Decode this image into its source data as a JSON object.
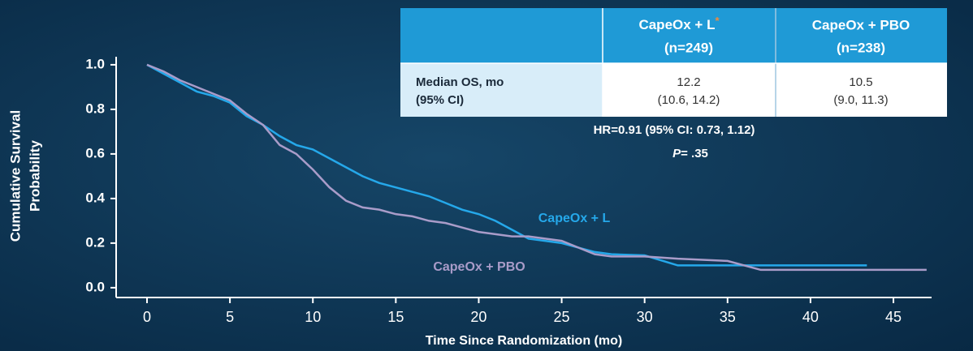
{
  "chart_data": {
    "type": "line",
    "y_label": [
      "Cumulative Survival",
      "Probability"
    ],
    "x_label": "Time Since Randomization (mo)",
    "x": [
      0,
      1,
      2,
      3,
      4,
      5,
      6,
      7,
      8,
      9,
      10,
      11,
      12,
      13,
      14,
      15,
      16,
      17,
      18,
      19,
      20,
      21,
      22,
      23,
      24,
      25,
      26,
      27,
      28,
      30,
      32,
      35,
      37,
      40,
      43.4,
      47
    ],
    "series": [
      {
        "name": "CapeOx + L",
        "color": "#25a8ea",
        "values": [
          1.0,
          0.96,
          0.92,
          0.88,
          0.86,
          0.83,
          0.77,
          0.73,
          0.68,
          0.64,
          0.62,
          0.58,
          0.54,
          0.5,
          0.47,
          0.45,
          0.43,
          0.41,
          0.38,
          0.35,
          0.33,
          0.3,
          0.26,
          0.22,
          0.21,
          0.2,
          0.18,
          0.16,
          0.15,
          0.145,
          0.1,
          0.1,
          0.1,
          0.1,
          0.1,
          null
        ]
      },
      {
        "name": "CapeOx + PBO",
        "color": "#a99cc9",
        "values": [
          1.0,
          0.97,
          0.93,
          0.9,
          0.87,
          0.84,
          0.78,
          0.73,
          0.64,
          0.6,
          0.53,
          0.45,
          0.39,
          0.36,
          0.35,
          0.33,
          0.32,
          0.3,
          0.29,
          0.27,
          0.25,
          0.24,
          0.23,
          0.23,
          0.22,
          0.21,
          0.18,
          0.15,
          0.14,
          0.14,
          0.13,
          0.12,
          0.08,
          0.08,
          0.08,
          0.08
        ]
      }
    ],
    "xlim": [
      -1.86,
      47.3
    ],
    "ylim": [
      -0.044,
      1.036
    ],
    "xticks": [
      0,
      5,
      10,
      15,
      20,
      25,
      30,
      35,
      40,
      45
    ],
    "yticks": [
      {
        "value": 0,
        "label": "0.0"
      },
      {
        "value": 0.2,
        "label": "0.2"
      },
      {
        "value": 0.4,
        "label": "0.4"
      },
      {
        "value": 0.6,
        "label": "0.6"
      },
      {
        "value": 0.8,
        "label": "0.8"
      },
      {
        "value": 1,
        "label": "1.0"
      }
    ]
  },
  "table": {
    "columns": [
      {
        "name": "CapeOx + L",
        "mark": "*",
        "n": "(n=249)"
      },
      {
        "name": "CapeOx + PBO",
        "n": "(n=238)"
      }
    ],
    "row": {
      "label": [
        "Median OS, mo",
        "(95% CI)"
      ],
      "cells": [
        [
          "12.2",
          "(10.6, 14.2)"
        ],
        [
          "10.5",
          "(9.0, 11.3)"
        ]
      ]
    },
    "hr": "HR=0.91 (95% CI: 0.73, 1.12)",
    "p": {
      "label": "P",
      "text": "= .35"
    }
  }
}
